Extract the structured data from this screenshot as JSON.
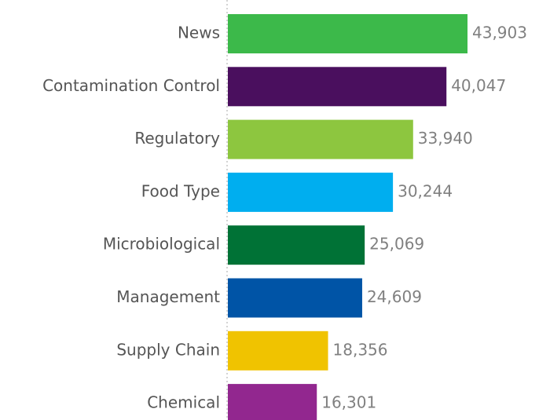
{
  "chart_data": {
    "type": "bar",
    "orientation": "horizontal",
    "categories": [
      "News",
      "Contamination Control",
      "Regulatory",
      "Food Type",
      "Microbiological",
      "Management",
      "Supply Chain",
      "Chemical"
    ],
    "values": [
      43903,
      40047,
      33940,
      30244,
      25069,
      24609,
      18356,
      16301
    ],
    "value_labels": [
      "43,903",
      "40,047",
      "33,940",
      "30,244",
      "25,069",
      "24,609",
      "18,356",
      "16,301"
    ],
    "colors": [
      "#3cb94a",
      "#4a0f5e",
      "#8dc63f",
      "#00aeef",
      "#007236",
      "#0054a6",
      "#f0c300",
      "#92278f"
    ]
  }
}
